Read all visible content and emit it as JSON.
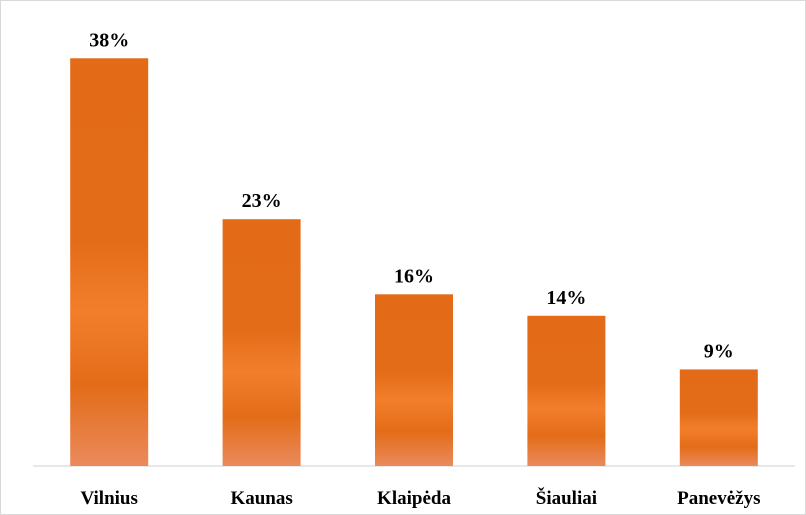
{
  "chart_data": {
    "type": "bar",
    "categories": [
      "Vilnius",
      "Kaunas",
      "Klaipėda",
      "Šiauliai",
      "Panevėžys"
    ],
    "values": [
      38,
      23,
      16,
      14,
      9
    ],
    "value_labels": [
      "38%",
      "23%",
      "16%",
      "14%",
      "9%"
    ],
    "color": "#e46c1a"
  }
}
